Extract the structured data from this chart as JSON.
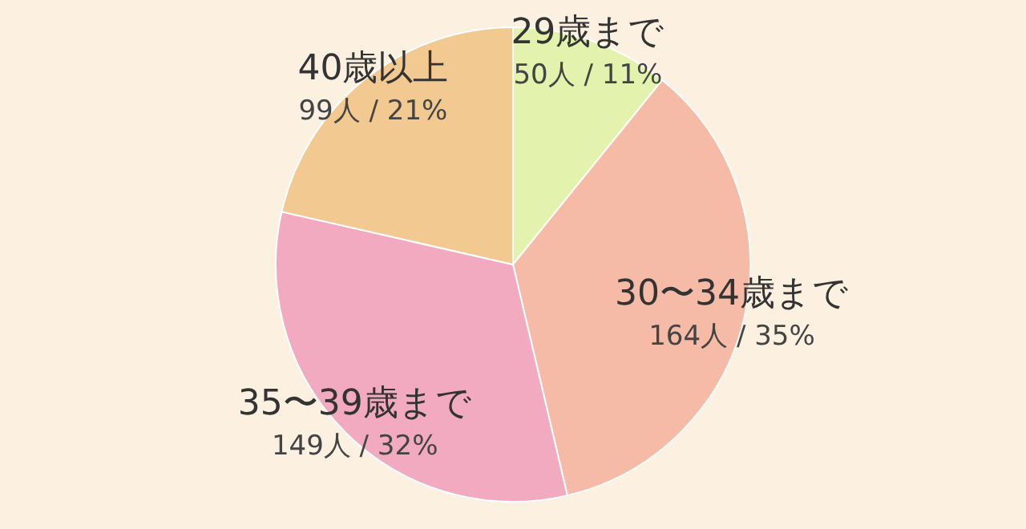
{
  "chart_data": {
    "type": "pie",
    "categories": [
      "29歳まで",
      "30〜34歳まで",
      "35〜39歳まで",
      "40歳以上"
    ],
    "values": [
      50,
      164,
      149,
      99
    ],
    "colors": [
      "#e3f2ac",
      "#f5bba6",
      "#f2aac0",
      "#f2c990"
    ],
    "value_labels": [
      "50人 / 11%",
      "164人 / 35%",
      "149人 / 32%",
      "99人 / 21%"
    ]
  }
}
